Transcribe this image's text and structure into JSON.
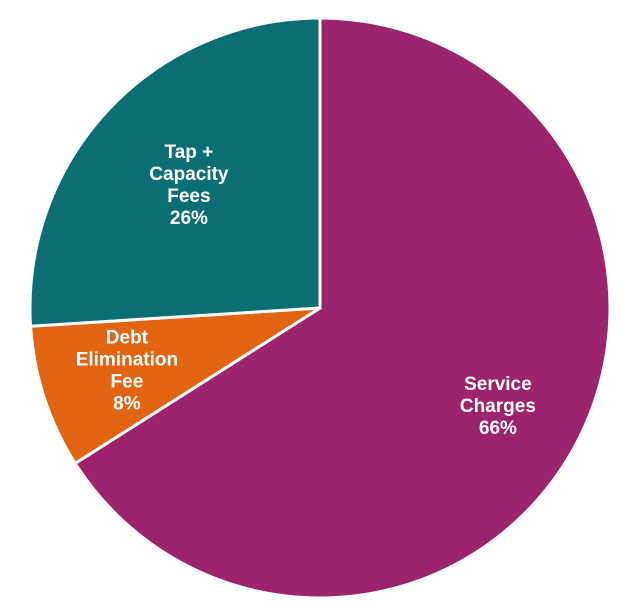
{
  "chart_data": {
    "type": "pie",
    "slices": [
      {
        "label_lines": [
          "Service",
          "Charges"
        ],
        "percent_label": "66%",
        "value": 66,
        "color": "#9c246b"
      },
      {
        "label_lines": [
          "Debt",
          "Elimination",
          "Fee"
        ],
        "percent_label": "8%",
        "value": 8,
        "color": "#e06412"
      },
      {
        "label_lines": [
          "Tap +",
          "Capacity",
          "Fees"
        ],
        "percent_label": "26%",
        "value": 26,
        "color": "#0a6e72"
      }
    ]
  }
}
